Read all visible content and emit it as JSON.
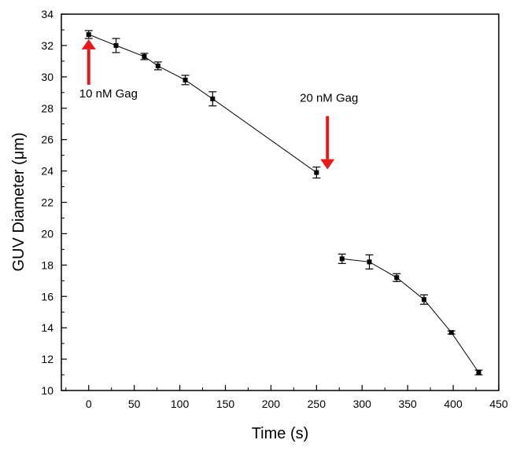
{
  "chart_data": {
    "type": "line",
    "xlabel": "Time (s)",
    "ylabel": "GUV Diameter (μm)",
    "xlim": [
      -30,
      450
    ],
    "ylim": [
      10,
      34
    ],
    "xticks": [
      0,
      50,
      100,
      150,
      200,
      250,
      300,
      350,
      400,
      450
    ],
    "yticks": [
      10,
      12,
      14,
      16,
      18,
      20,
      22,
      24,
      26,
      28,
      30,
      32,
      34
    ],
    "grid": false,
    "series": [
      {
        "x": [
          0,
          30,
          61,
          76,
          106,
          136,
          250
        ],
        "y": [
          32.7,
          32.0,
          31.3,
          30.7,
          29.8,
          28.6,
          23.9
        ],
        "err": [
          0.25,
          0.45,
          0.2,
          0.25,
          0.3,
          0.45,
          0.35
        ]
      },
      {
        "x": [
          278,
          308,
          338,
          368,
          398,
          428
        ],
        "y": [
          18.4,
          18.2,
          17.2,
          15.8,
          13.7,
          11.15
        ],
        "err": [
          0.3,
          0.45,
          0.25,
          0.3,
          0.1,
          0.15
        ]
      }
    ],
    "annotations": [
      {
        "text": "10 nM Gag",
        "arrow_direction": "up",
        "arrow_x": 0,
        "arrow_from_y": 29.5,
        "arrow_to_y": 32.4,
        "color": "#e41a1c"
      },
      {
        "text": "20 nM Gag",
        "arrow_direction": "down",
        "arrow_x": 262,
        "arrow_from_y": 27.5,
        "arrow_to_y": 24.1,
        "color": "#e41a1c"
      }
    ],
    "colors": {
      "series": "#000000",
      "arrow": "#e41a1c",
      "axis": "#000000"
    }
  }
}
